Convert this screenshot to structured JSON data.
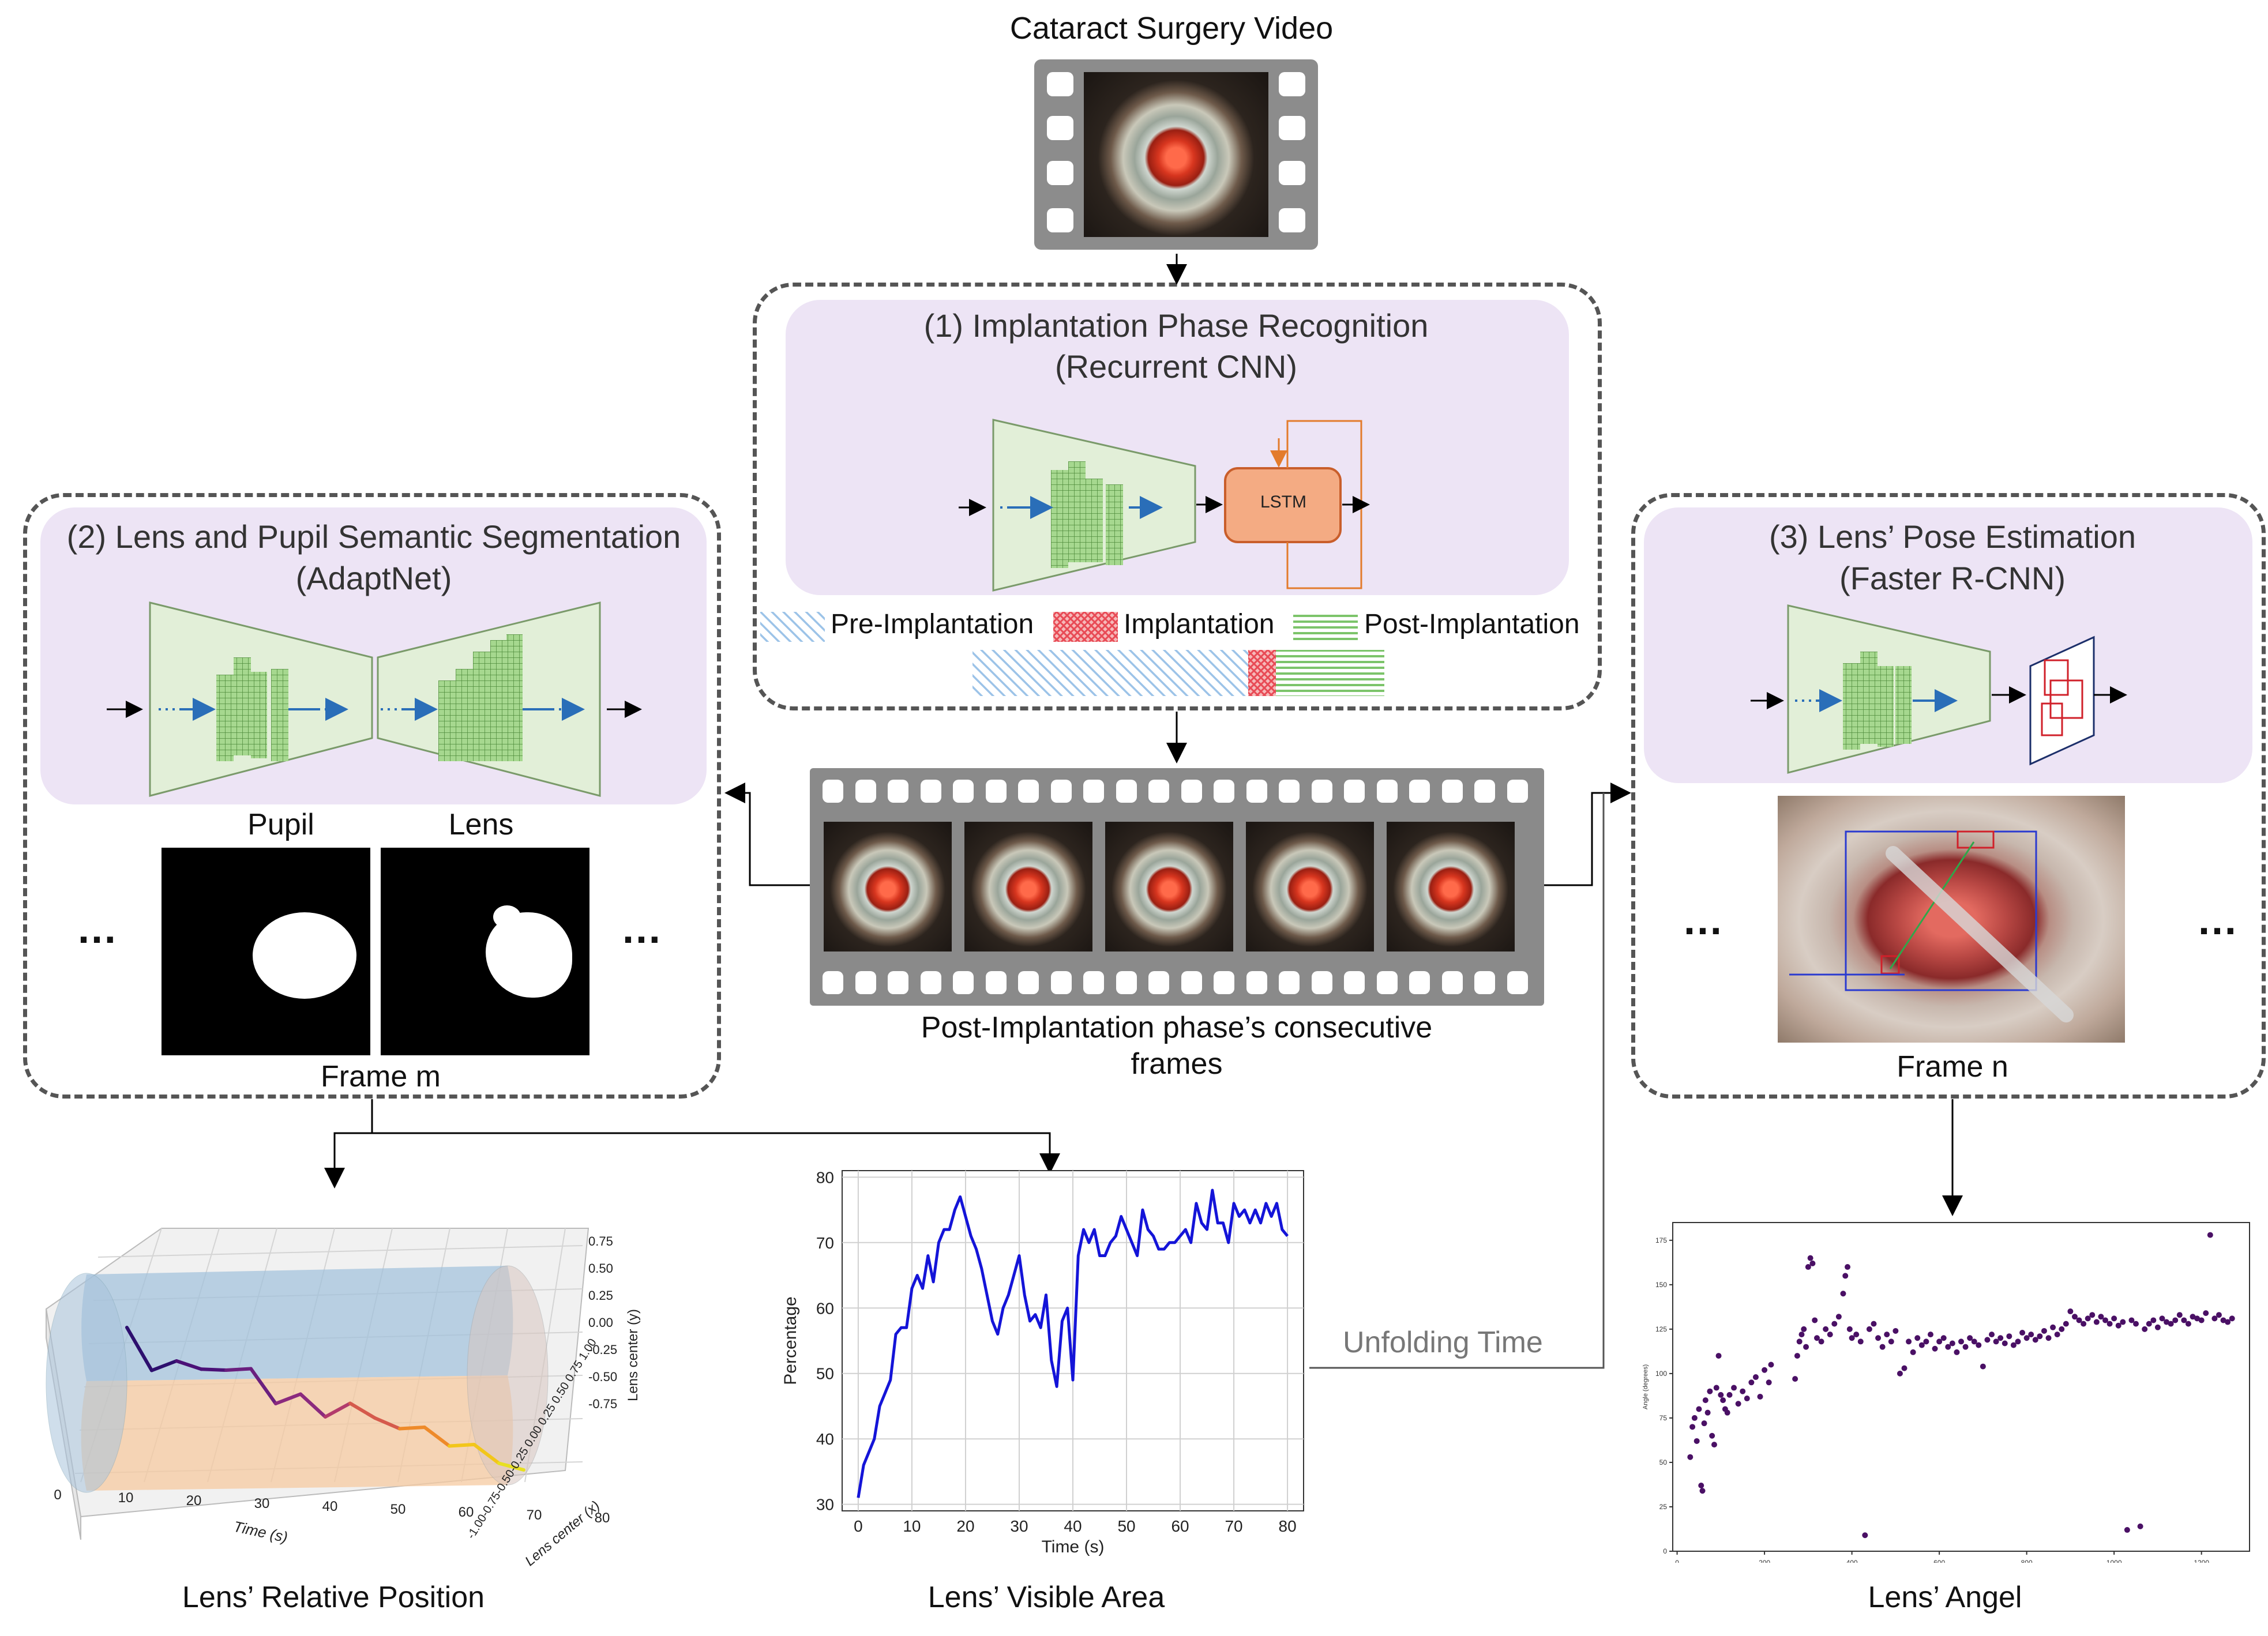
{
  "header": {
    "title": "Cataract Surgery Video"
  },
  "panel_phase": {
    "title": "(1) Implantation Phase Recognition",
    "subtitle": "(Recurrent CNN)",
    "lstm_label": "LSTM",
    "legend": [
      {
        "label": "Pre-Implantation",
        "color": "#9cc3e8"
      },
      {
        "label": "Implantation",
        "color": "#e8585e"
      },
      {
        "label": "Post-Implantation",
        "color": "#7cc46a"
      }
    ]
  },
  "panel_segmentation": {
    "title": "(2) Lens and Pupil Semantic Segmentation",
    "subtitle": "(AdaptNet)",
    "mask_labels": [
      "Pupil",
      "Lens"
    ],
    "frame_label": "Frame m",
    "ellipsis": "…"
  },
  "panel_pose": {
    "title": "(3) Lens’ Pose Estimation",
    "subtitle": "(Faster R-CNN)",
    "frame_label": "Frame n",
    "ellipsis": "…"
  },
  "center": {
    "frames_caption_1": "Post-Implantation phase’s consecutive",
    "frames_caption_2": "frames"
  },
  "unfolding_label": "Unfolding Time",
  "captions": {
    "relative_position": "Lens’ Relative Position",
    "visible_area": "Lens’ Visible Area",
    "angle": "Lens’ Angel"
  },
  "chart_data": [
    {
      "type": "line",
      "title": "",
      "xlabel": "Time (s)",
      "ylabel": "Percentage",
      "xlim": [
        -3,
        83
      ],
      "ylim": [
        29,
        81
      ],
      "xticks": [
        "0",
        "10",
        "20",
        "30",
        "40",
        "50",
        "60",
        "70",
        "80"
      ],
      "yticks": [
        "30",
        "40",
        "50",
        "60",
        "70",
        "80"
      ],
      "grid": true,
      "color": "#1414d8",
      "series": [
        {
          "x": [
            0,
            1,
            2,
            3,
            4,
            5,
            6,
            7,
            8,
            9,
            10,
            11,
            12,
            13,
            14,
            15,
            16,
            17,
            18,
            19,
            20,
            21,
            22,
            23,
            24,
            25,
            26,
            27,
            28,
            29,
            30,
            31,
            32,
            33,
            34,
            35,
            36,
            37,
            38,
            39,
            40,
            41,
            42,
            43,
            44,
            45,
            46,
            47,
            48,
            49,
            50,
            51,
            52,
            53,
            54,
            55,
            56,
            57,
            58,
            59,
            60,
            61,
            62,
            63,
            64,
            65,
            66,
            67,
            68,
            69,
            70,
            71,
            72,
            73,
            74,
            75,
            76,
            77,
            78,
            79,
            80
          ],
          "y": [
            31,
            36,
            38,
            40,
            45,
            47,
            49,
            56,
            57,
            57,
            63,
            65,
            63,
            68,
            64,
            70,
            72,
            72,
            75,
            77,
            74,
            71,
            69,
            66,
            62,
            58,
            56,
            60,
            62,
            65,
            68,
            62,
            58,
            59,
            57,
            62,
            52,
            48,
            58,
            60,
            49,
            68,
            72,
            70,
            72,
            68,
            68,
            70,
            71,
            74,
            72,
            70,
            68,
            75,
            72,
            71,
            69,
            69,
            70,
            70,
            71,
            72,
            70,
            76,
            73,
            72,
            78,
            73,
            73,
            70,
            76,
            74,
            75,
            73,
            75,
            73,
            76,
            74,
            76,
            72,
            71
          ]
        }
      ]
    },
    {
      "type": "scatter",
      "title": "",
      "xlabel": "",
      "ylabel": "Angle (degrees)",
      "xlim": [
        -10,
        1310
      ],
      "ylim": [
        0,
        185
      ],
      "xticks": [
        "0",
        "200",
        "400",
        "600",
        "800",
        "1000",
        "1200"
      ],
      "yticks": [
        "0",
        "25",
        "50",
        "75",
        "100",
        "125",
        "150",
        "175"
      ],
      "color": "#4a1065",
      "points": [
        [
          30,
          53
        ],
        [
          35,
          70
        ],
        [
          40,
          75
        ],
        [
          45,
          62
        ],
        [
          50,
          80
        ],
        [
          55,
          37
        ],
        [
          58,
          34
        ],
        [
          62,
          72
        ],
        [
          65,
          85
        ],
        [
          70,
          78
        ],
        [
          75,
          90
        ],
        [
          80,
          65
        ],
        [
          85,
          60
        ],
        [
          90,
          92
        ],
        [
          95,
          110
        ],
        [
          100,
          88
        ],
        [
          105,
          85
        ],
        [
          110,
          80
        ],
        [
          115,
          78
        ],
        [
          120,
          88
        ],
        [
          130,
          92
        ],
        [
          140,
          83
        ],
        [
          150,
          90
        ],
        [
          160,
          86
        ],
        [
          170,
          95
        ],
        [
          180,
          98
        ],
        [
          190,
          87
        ],
        [
          200,
          102
        ],
        [
          210,
          95
        ],
        [
          215,
          105
        ],
        [
          270,
          97
        ],
        [
          275,
          110
        ],
        [
          280,
          118
        ],
        [
          285,
          122
        ],
        [
          290,
          125
        ],
        [
          295,
          115
        ],
        [
          300,
          160
        ],
        [
          305,
          165
        ],
        [
          310,
          162
        ],
        [
          315,
          130
        ],
        [
          320,
          120
        ],
        [
          330,
          118
        ],
        [
          340,
          125
        ],
        [
          350,
          122
        ],
        [
          360,
          128
        ],
        [
          370,
          132
        ],
        [
          380,
          145
        ],
        [
          385,
          155
        ],
        [
          390,
          160
        ],
        [
          395,
          125
        ],
        [
          400,
          120
        ],
        [
          410,
          122
        ],
        [
          420,
          118
        ],
        [
          430,
          9
        ],
        [
          440,
          125
        ],
        [
          450,
          128
        ],
        [
          460,
          120
        ],
        [
          470,
          115
        ],
        [
          480,
          122
        ],
        [
          490,
          118
        ],
        [
          500,
          124
        ],
        [
          510,
          100
        ],
        [
          520,
          103
        ],
        [
          530,
          118
        ],
        [
          540,
          112
        ],
        [
          550,
          120
        ],
        [
          560,
          116
        ],
        [
          570,
          118
        ],
        [
          580,
          122
        ],
        [
          590,
          114
        ],
        [
          600,
          118
        ],
        [
          610,
          120
        ],
        [
          620,
          115
        ],
        [
          630,
          117
        ],
        [
          640,
          112
        ],
        [
          650,
          118
        ],
        [
          660,
          115
        ],
        [
          670,
          120
        ],
        [
          680,
          118
        ],
        [
          690,
          116
        ],
        [
          700,
          104
        ],
        [
          710,
          119
        ],
        [
          720,
          122
        ],
        [
          730,
          118
        ],
        [
          740,
          120
        ],
        [
          750,
          117
        ],
        [
          760,
          121
        ],
        [
          770,
          116
        ],
        [
          780,
          118
        ],
        [
          790,
          123
        ],
        [
          800,
          120
        ],
        [
          810,
          122
        ],
        [
          820,
          119
        ],
        [
          830,
          121
        ],
        [
          840,
          124
        ],
        [
          850,
          120
        ],
        [
          860,
          126
        ],
        [
          870,
          122
        ],
        [
          880,
          125
        ],
        [
          890,
          128
        ],
        [
          900,
          135
        ],
        [
          910,
          132
        ],
        [
          920,
          130
        ],
        [
          930,
          128
        ],
        [
          940,
          131
        ],
        [
          950,
          133
        ],
        [
          960,
          129
        ],
        [
          970,
          132
        ],
        [
          980,
          130
        ],
        [
          990,
          128
        ],
        [
          1000,
          131
        ],
        [
          1010,
          127
        ],
        [
          1020,
          129
        ],
        [
          1030,
          12
        ],
        [
          1040,
          130
        ],
        [
          1050,
          128
        ],
        [
          1060,
          14
        ],
        [
          1070,
          125
        ],
        [
          1080,
          128
        ],
        [
          1090,
          130
        ],
        [
          1100,
          126
        ],
        [
          1110,
          131
        ],
        [
          1120,
          129
        ],
        [
          1130,
          128
        ],
        [
          1140,
          130
        ],
        [
          1150,
          133
        ],
        [
          1160,
          130
        ],
        [
          1170,
          128
        ],
        [
          1180,
          132
        ],
        [
          1190,
          131
        ],
        [
          1200,
          130
        ],
        [
          1210,
          134
        ],
        [
          1220,
          178
        ],
        [
          1230,
          131
        ],
        [
          1240,
          133
        ],
        [
          1250,
          130
        ],
        [
          1260,
          129
        ],
        [
          1270,
          131
        ]
      ]
    },
    {
      "type": "line",
      "title": "",
      "xlabel": "Time (s)",
      "ylabel": "Lens center (y)",
      "zlabel": "Lens center (x)",
      "xticks": [
        "0",
        "10",
        "20",
        "30",
        "40",
        "50",
        "60",
        "70",
        "80"
      ],
      "yticks": [
        "0.75",
        "0.50",
        "0.25",
        "0.00",
        "-0.25",
        "-0.50",
        "-0.75"
      ],
      "ztick_labels": "-1.00-0.75-0.50-0.25 0.00 0.25 0.50 0.75 1.00",
      "series": [
        {
          "x": [
            0,
            5,
            10,
            15,
            20,
            25,
            30,
            35,
            40,
            45,
            50,
            55,
            60,
            65,
            70,
            75,
            80
          ],
          "y": [
            0.7,
            0.2,
            0.35,
            0.28,
            0.3,
            0.35,
            -0.05,
            0.1,
            -0.15,
            0.05,
            -0.1,
            -0.2,
            -0.15,
            -0.35,
            -0.3,
            -0.5,
            -0.55
          ]
        }
      ]
    }
  ]
}
